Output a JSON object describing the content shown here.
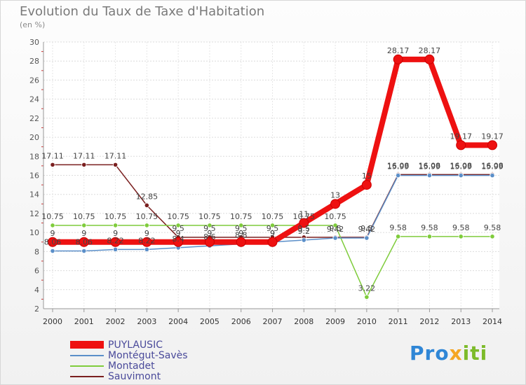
{
  "chart_data": {
    "type": "line",
    "title": "Evolution du Taux de Taxe d'Habitation",
    "ylabel": "(en %)",
    "ylim": [
      2,
      30
    ],
    "yticks": [
      2,
      4,
      6,
      8,
      10,
      12,
      14,
      16,
      18,
      20,
      22,
      24,
      26,
      28,
      30
    ],
    "x": [
      "2000",
      "2001",
      "2002",
      "2003",
      "2004",
      "2005",
      "2006",
      "2007",
      "2008",
      "2009",
      "2010",
      "2011",
      "2012",
      "2013",
      "2014"
    ],
    "grid": true,
    "legend_position": "bottom-left",
    "series": [
      {
        "name": "Sauvimont",
        "color": "#7a1f1f",
        "values": [
          17.11,
          17.11,
          17.11,
          12.85,
          9.5,
          9.5,
          9.5,
          9.5,
          9.5,
          9.5,
          9.5,
          16.08,
          16.08,
          16.08,
          16.08
        ],
        "labels": [
          "17.11",
          "17.11",
          "17.11",
          "12.85",
          "9.5",
          "9.5",
          "9.5",
          "9.5",
          "9.5",
          "9.5",
          "9.5",
          "16.08",
          "16.08",
          "16.08",
          "16.08"
        ]
      },
      {
        "name": "Montadet",
        "color": "#7fcc3c",
        "values": [
          10.75,
          10.75,
          10.75,
          10.75,
          10.75,
          10.75,
          10.75,
          10.75,
          10.75,
          10.75,
          3.22,
          9.58,
          9.58,
          9.58,
          9.58
        ],
        "labels": [
          "10.75",
          "10.75",
          "10.75",
          "10.75",
          "10.75",
          "10.75",
          "10.75",
          "10.75",
          "10.75",
          "10.75",
          "3.22",
          "9.58",
          "9.58",
          "9.58",
          "9.58"
        ]
      },
      {
        "name": "Montégut-Savès",
        "color": "#5b8fc9",
        "values": [
          8.06,
          8.06,
          8.22,
          8.22,
          8.4,
          8.6,
          8.8,
          9.0,
          9.2,
          9.42,
          9.42,
          15.99,
          15.99,
          15.99,
          15.99
        ],
        "labels": [
          "8.06",
          "8.06",
          "8.22",
          "8.22",
          "8.4",
          "8.6",
          "8.8",
          "9",
          "9.2",
          "9.42",
          "9.42",
          "15.99",
          "15.99",
          "15.99",
          "15.99"
        ]
      },
      {
        "name": "PUYLAUSIC",
        "color": "#ee1111",
        "values": [
          9,
          9,
          9,
          9,
          9,
          9,
          9,
          9,
          11,
          13,
          15,
          28.17,
          28.17,
          19.17,
          19.17
        ],
        "labels": [
          "9",
          "9",
          "9",
          "9",
          "9",
          "9",
          "9",
          "9",
          "11",
          "13",
          "15",
          "28.17",
          "28.17",
          "19.17",
          "19.17"
        ]
      }
    ],
    "legend": [
      "PUYLAUSIC",
      "Montégut-Savès",
      "Montadet",
      "Sauvimont"
    ]
  },
  "legend_colors": {
    "PUYLAUSIC": "#ee1111",
    "Montégut-Savès": "#5b8fc9",
    "Montadet": "#7fcc3c",
    "Sauvimont": "#7a1f1f"
  },
  "logo": {
    "p1": "Pro",
    "p2": "x",
    "p3": "iti"
  }
}
